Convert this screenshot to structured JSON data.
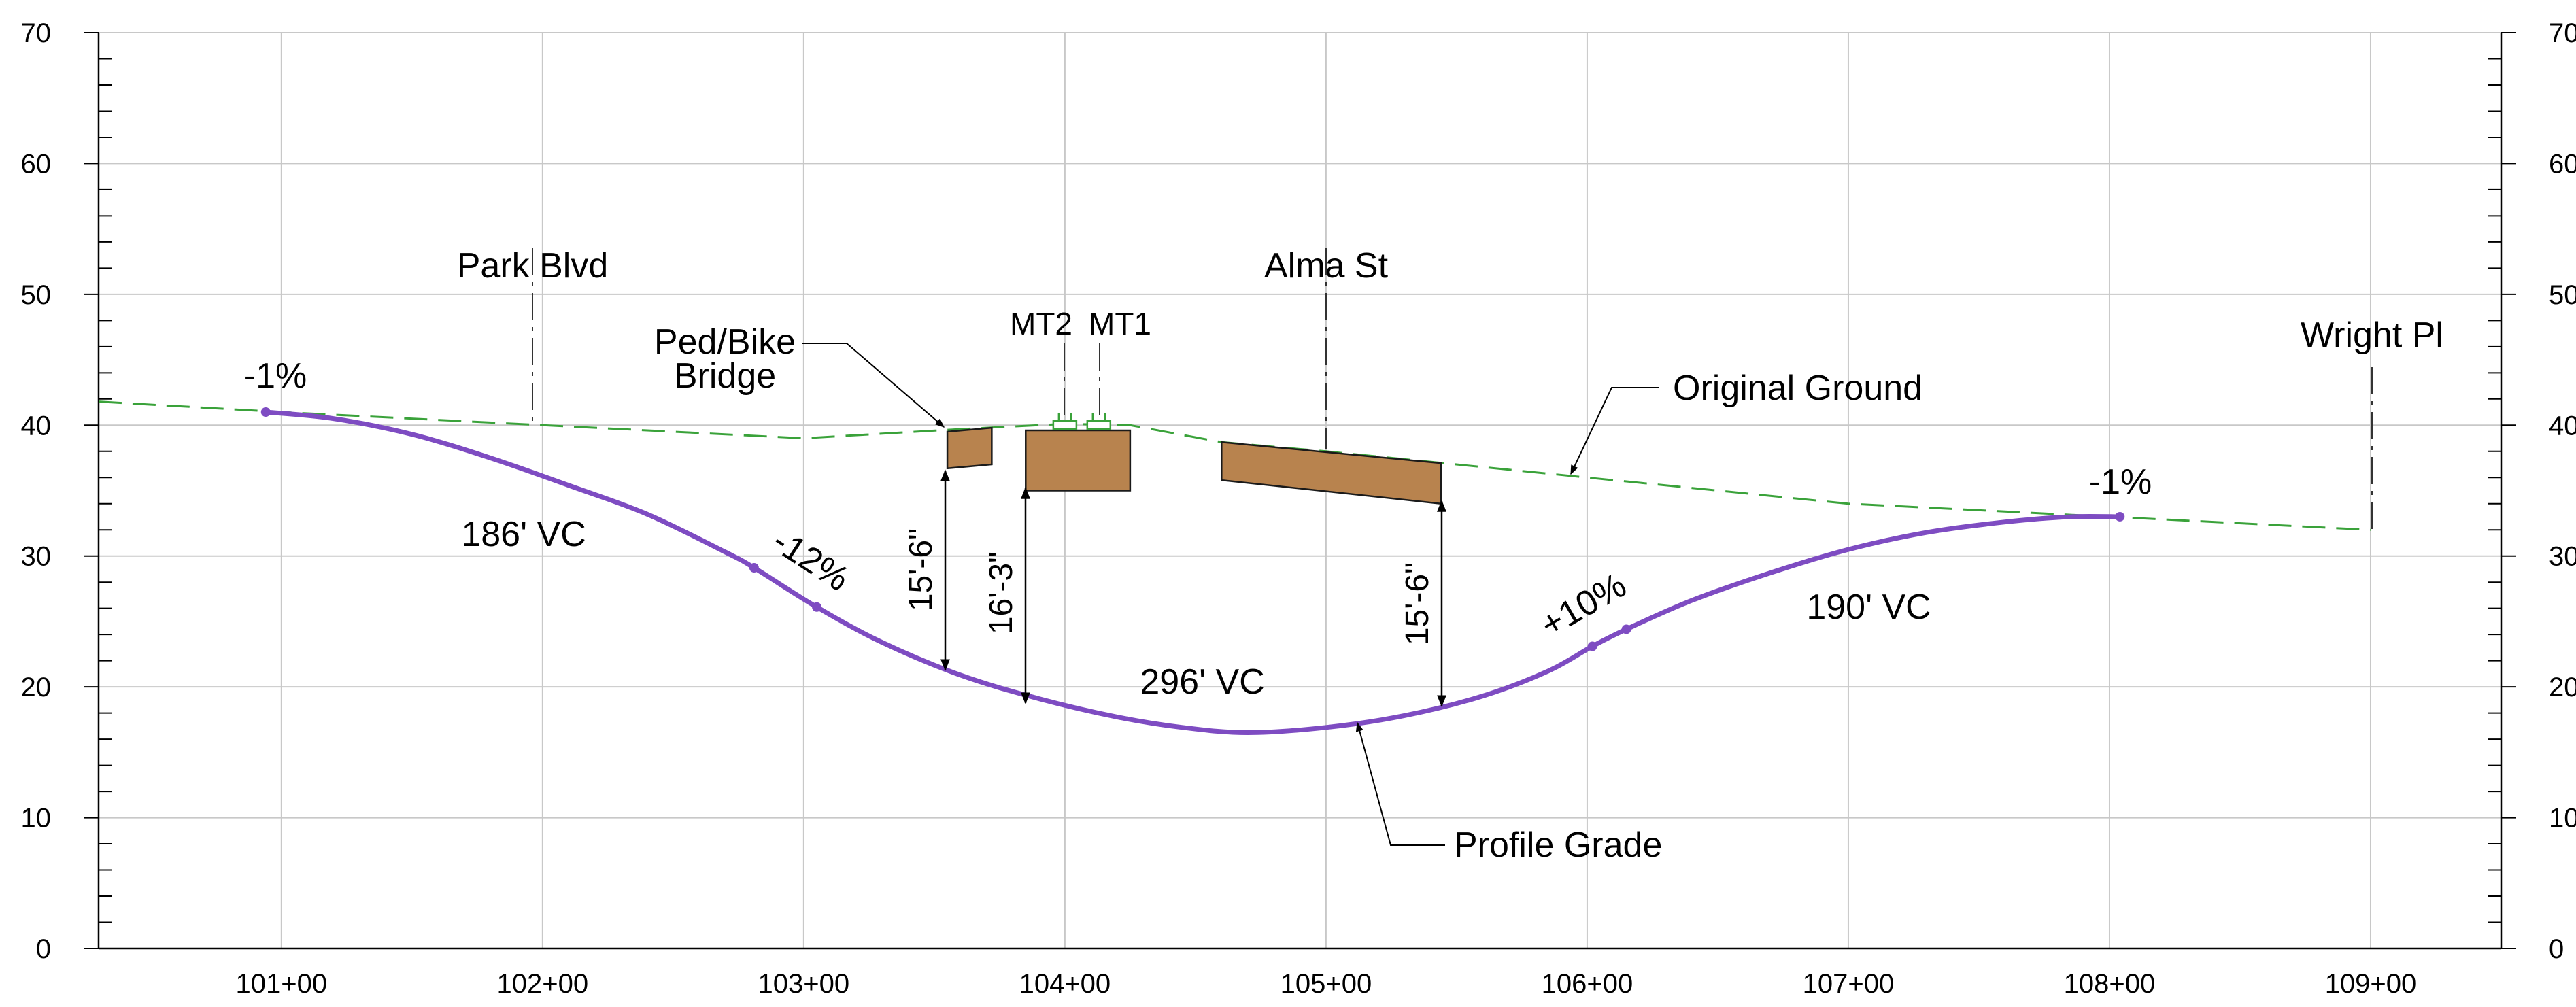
{
  "colors": {
    "profile_grade": "#7e4cc2",
    "original_ground": "#3aa23a",
    "structure_fill": "#b8834e",
    "structure_stroke": "#1a1a1a",
    "track_marker": "#3aa23a"
  },
  "axes": {
    "x_ticks": [
      {
        "value": 101,
        "label": "101+00"
      },
      {
        "value": 102,
        "label": "102+00"
      },
      {
        "value": 103,
        "label": "103+00"
      },
      {
        "value": 104,
        "label": "104+00"
      },
      {
        "value": 105,
        "label": "105+00"
      },
      {
        "value": 106,
        "label": "106+00"
      },
      {
        "value": 107,
        "label": "107+00"
      },
      {
        "value": 108,
        "label": "108+00"
      },
      {
        "value": 109,
        "label": "109+00"
      }
    ],
    "y_ticks": [
      {
        "value": 0,
        "label": "0"
      },
      {
        "value": 10,
        "label": "10"
      },
      {
        "value": 20,
        "label": "20"
      },
      {
        "value": 30,
        "label": "30"
      },
      {
        "value": 40,
        "label": "40"
      },
      {
        "value": 50,
        "label": "50"
      },
      {
        "value": 60,
        "label": "60"
      },
      {
        "value": 70,
        "label": "70"
      }
    ],
    "x_range": [
      100.3,
      109.5
    ],
    "y_range": [
      0,
      70
    ]
  },
  "profile_grade": {
    "points": [
      [
        100.94,
        41.0
      ],
      [
        101.2,
        40.5
      ],
      [
        101.5,
        39.3
      ],
      [
        101.8,
        37.5
      ],
      [
        102.1,
        35.4
      ],
      [
        102.4,
        33.2
      ],
      [
        102.7,
        30.3
      ],
      [
        102.81,
        29.1
      ],
      [
        103.05,
        26.1
      ],
      [
        103.3,
        23.4
      ],
      [
        103.6,
        20.9
      ],
      [
        103.9,
        19.1
      ],
      [
        104.2,
        17.7
      ],
      [
        104.45,
        16.9
      ],
      [
        104.7,
        16.5
      ],
      [
        105.0,
        16.9
      ],
      [
        105.3,
        17.8
      ],
      [
        105.6,
        19.3
      ],
      [
        105.85,
        21.2
      ],
      [
        106.02,
        23.1
      ],
      [
        106.15,
        24.4
      ],
      [
        106.4,
        26.6
      ],
      [
        106.7,
        28.7
      ],
      [
        107.0,
        30.5
      ],
      [
        107.3,
        31.8
      ],
      [
        107.6,
        32.6
      ],
      [
        107.85,
        33.0
      ],
      [
        108.04,
        33.0
      ]
    ],
    "vertices": [
      [
        100.94,
        41.0
      ],
      [
        102.81,
        29.1
      ],
      [
        103.05,
        26.1
      ],
      [
        106.02,
        23.1
      ],
      [
        106.15,
        24.4
      ],
      [
        108.04,
        33.0
      ]
    ]
  },
  "original_ground": {
    "points": [
      [
        100.3,
        41.8
      ],
      [
        101.0,
        41.0
      ],
      [
        102.0,
        40.0
      ],
      [
        103.0,
        39.0
      ],
      [
        103.6,
        39.7
      ],
      [
        104.0,
        40.1
      ],
      [
        104.25,
        40.0
      ],
      [
        104.6,
        38.7
      ],
      [
        105.0,
        38.0
      ],
      [
        106.0,
        36.0
      ],
      [
        107.0,
        34.0
      ],
      [
        108.0,
        33.0
      ],
      [
        109.0,
        32.0
      ]
    ]
  },
  "structures": [
    {
      "name": "ped-bike-bridge",
      "polygon": [
        [
          103.55,
          39.5
        ],
        [
          103.72,
          39.8
        ],
        [
          103.72,
          37.0
        ],
        [
          103.55,
          36.7
        ]
      ]
    },
    {
      "name": "railroad-bridge",
      "polygon": [
        [
          103.85,
          39.6
        ],
        [
          104.25,
          39.6
        ],
        [
          104.25,
          35.0
        ],
        [
          103.85,
          35.0
        ]
      ]
    },
    {
      "name": "alma-st-bridge",
      "polygon": [
        [
          104.6,
          38.7
        ],
        [
          105.44,
          37.1
        ],
        [
          105.44,
          34.0
        ],
        [
          104.6,
          35.8
        ]
      ]
    }
  ],
  "track_markers": [
    {
      "label": "MT2",
      "x": 104.0,
      "y": 39.6
    },
    {
      "label": "MT1",
      "x": 104.13,
      "y": 39.6
    }
  ],
  "labels": {
    "park_blvd": "Park Blvd",
    "alma_st": "Alma St",
    "wright_pl": "Wright Pl",
    "ped_bike_line1": "Ped/Bike",
    "ped_bike_line2": "Bridge",
    "mt2": "MT2",
    "mt1": "MT1",
    "original_ground": "Original Ground",
    "profile_grade": "Profile Grade",
    "grade_start": "-1%",
    "grade_end": "-1%",
    "grade_down": "-12%",
    "grade_up": "+10%",
    "vc_186": "186' VC",
    "vc_296": "296' VC",
    "vc_190": "190' VC",
    "clear_ped": "15'-6\"",
    "clear_rail": "16'-3\"",
    "clear_alma": "15'-6\""
  }
}
